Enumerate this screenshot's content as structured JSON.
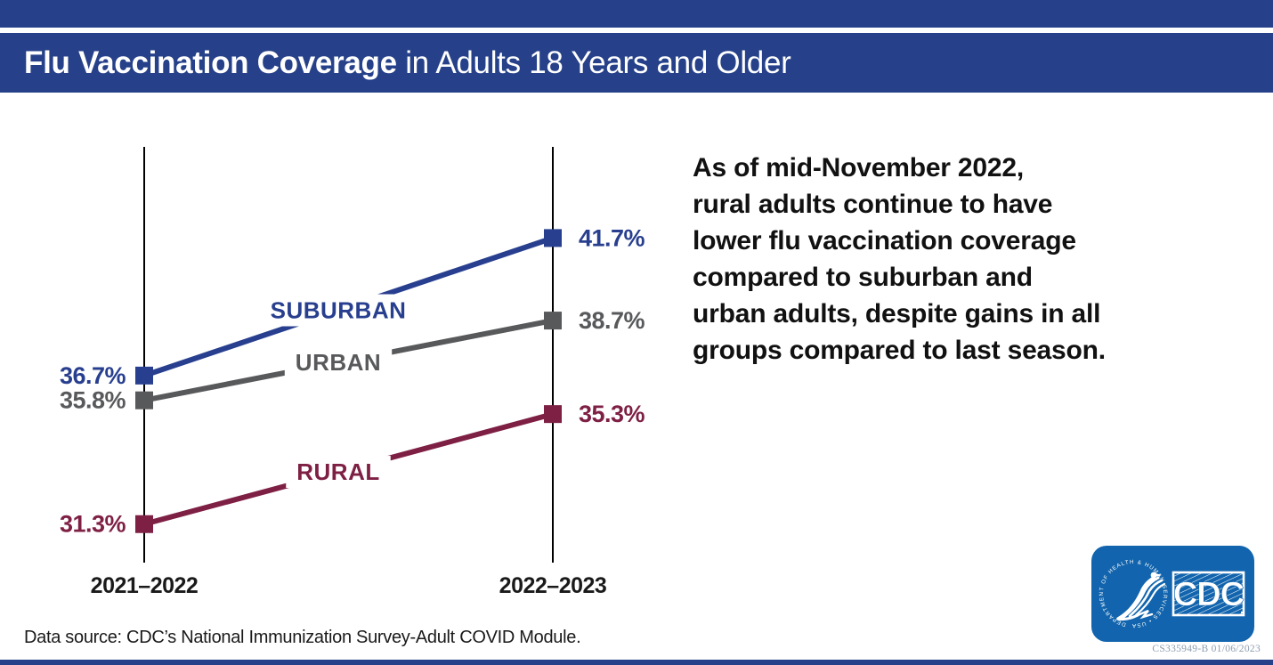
{
  "header": {
    "title_bold": "Flu Vaccination Coverage",
    "title_rest": " in Adults 18 Years and Older"
  },
  "annotation": {
    "lines": [
      "As of mid-November 2022,",
      "rural adults continue to have",
      "lower flu vaccination coverage",
      "compared to suburban and",
      "urban adults, despite gains in all",
      "groups compared to last season."
    ]
  },
  "footer": {
    "data_source": "Data source: CDC’s National Immunization Survey-Adult COVID Module.",
    "doc_code": "CS335949-B 01/06/2023"
  },
  "logo": {
    "cdc_label": "CDC",
    "hhs_ring_text": "DEPARTMENT OF HEALTH & HUMAN SERVICES • USA"
  },
  "colors": {
    "navy": "#264189",
    "suburban_blue": "#283f8f",
    "urban_gray": "#58595b",
    "rural_maroon": "#7e1f44",
    "axis_black": "#000000",
    "logo_blue": "#1164ad"
  },
  "chart_data": {
    "type": "line",
    "subtype": "slope-chart",
    "title": "Flu Vaccination Coverage in Adults 18 Years and Older",
    "categories": [
      "2021–2022",
      "2022–2023"
    ],
    "series": [
      {
        "name": "SUBURBAN",
        "values": [
          36.7,
          41.7
        ],
        "color": "#283f8f"
      },
      {
        "name": "URBAN",
        "values": [
          35.8,
          38.7
        ],
        "color": "#58595b"
      },
      {
        "name": "RURAL",
        "values": [
          31.3,
          35.3
        ],
        "color": "#7e1f44"
      }
    ],
    "value_label_format": "{value}%",
    "grid": false,
    "legend_position": "on-line-labels",
    "ylim": [
      29.9,
      45.0
    ]
  }
}
